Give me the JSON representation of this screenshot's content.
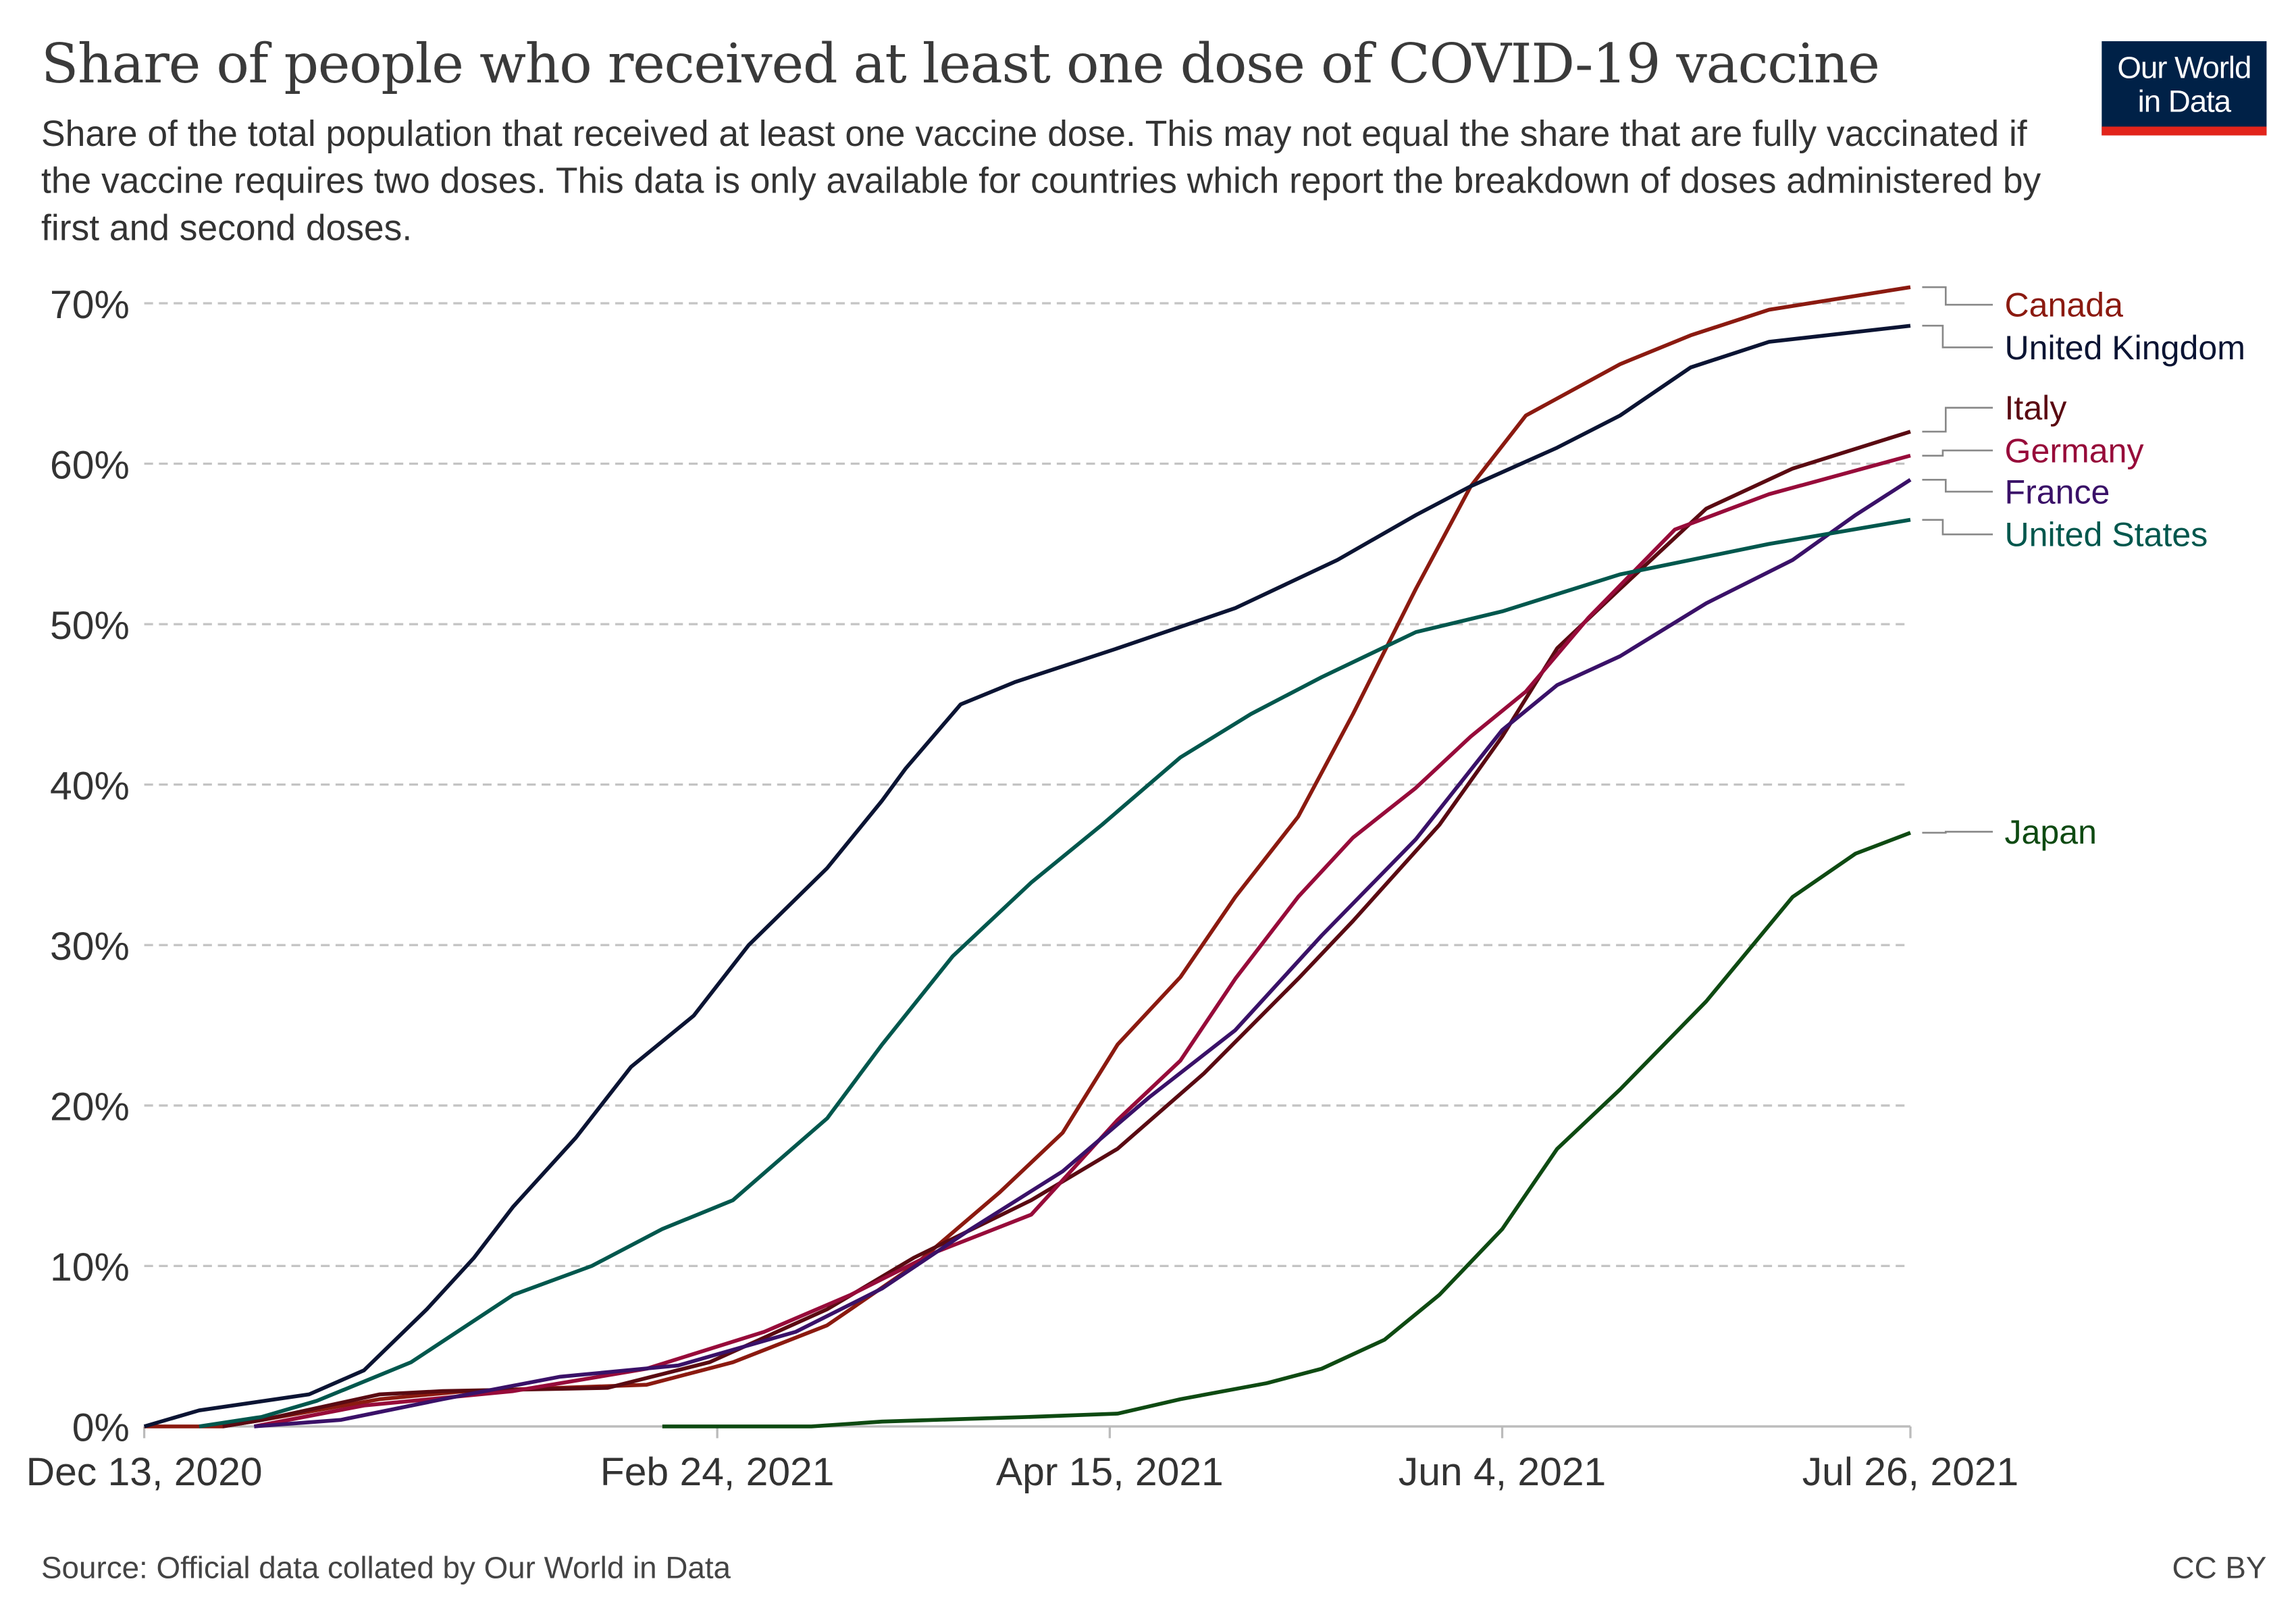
{
  "header": {
    "title": "Share of people who received at least one dose of COVID-19 vaccine",
    "subtitle": "Share of the total population that received at least one vaccine dose. This may not equal the share that are fully vaccinated if the vaccine requires two doses. This data is only available for countries which report the breakdown of doses administered by first and second doses.",
    "logo_line1": "Our World",
    "logo_line2": "in Data",
    "logo_colors": {
      "background": "#002147",
      "stripe": "#e2241b"
    }
  },
  "footer": {
    "source": "Source: Official data collated by Our World in Data",
    "license": "CC BY"
  },
  "chart_data": {
    "type": "line",
    "title": "Share of people who received at least one dose of COVID-19 vaccine",
    "xlabel": "",
    "ylabel": "",
    "x_type": "date",
    "xlim": [
      "2020-12-13",
      "2021-07-26"
    ],
    "x_ticks": [
      {
        "date": "2020-12-13",
        "label": "Dec 13, 2020"
      },
      {
        "date": "2021-02-24",
        "label": "Feb 24, 2021"
      },
      {
        "date": "2021-04-15",
        "label": "Apr 15, 2021"
      },
      {
        "date": "2021-06-04",
        "label": "Jun 4, 2021"
      },
      {
        "date": "2021-07-26",
        "label": "Jul 26, 2021"
      }
    ],
    "ylim": [
      0,
      70
    ],
    "y_ticks": [
      {
        "value": 0,
        "label": "0%"
      },
      {
        "value": 10,
        "label": "10%"
      },
      {
        "value": 20,
        "label": "20%"
      },
      {
        "value": 30,
        "label": "30%"
      },
      {
        "value": 40,
        "label": "40%"
      },
      {
        "value": 50,
        "label": "50%"
      },
      {
        "value": 60,
        "label": "60%"
      },
      {
        "value": 70,
        "label": "70%"
      }
    ],
    "grid": "horizontal dashed",
    "legend": "right, labels at line ends",
    "series": [
      {
        "name": "Canada",
        "color": "#8b1a10",
        "points": [
          [
            "2020-12-13",
            0
          ],
          [
            "2020-12-23",
            0
          ],
          [
            "2020-12-28",
            0.4
          ],
          [
            "2021-01-12",
            1.7
          ],
          [
            "2021-01-23",
            2.2
          ],
          [
            "2021-02-15",
            2.6
          ],
          [
            "2021-02-26",
            4
          ],
          [
            "2021-03-10",
            6.3
          ],
          [
            "2021-03-21",
            10
          ],
          [
            "2021-04-01",
            14.6
          ],
          [
            "2021-04-09",
            18.3
          ],
          [
            "2021-04-16",
            23.8
          ],
          [
            "2021-04-24",
            28
          ],
          [
            "2021-05-01",
            33
          ],
          [
            "2021-05-09",
            38
          ],
          [
            "2021-05-16",
            44.4
          ],
          [
            "2021-05-24",
            52.2
          ],
          [
            "2021-05-31",
            58.6
          ],
          [
            "2021-06-07",
            63
          ],
          [
            "2021-06-19",
            66.2
          ],
          [
            "2021-06-28",
            68
          ],
          [
            "2021-07-08",
            69.6
          ],
          [
            "2021-07-26",
            71
          ]
        ]
      },
      {
        "name": "United Kingdom",
        "color": "#0b1433",
        "points": [
          [
            "2020-12-13",
            0
          ],
          [
            "2020-12-20",
            1
          ],
          [
            "2021-01-03",
            2
          ],
          [
            "2021-01-10",
            3.5
          ],
          [
            "2021-01-18",
            7.3
          ],
          [
            "2021-01-24",
            10.5
          ],
          [
            "2021-01-29",
            13.7
          ],
          [
            "2021-02-06",
            18
          ],
          [
            "2021-02-13",
            22.4
          ],
          [
            "2021-02-21",
            25.6
          ],
          [
            "2021-02-28",
            30
          ],
          [
            "2021-03-10",
            34.8
          ],
          [
            "2021-03-17",
            39
          ],
          [
            "2021-03-20",
            41
          ],
          [
            "2021-03-27",
            45
          ],
          [
            "2021-04-03",
            46.4
          ],
          [
            "2021-04-16",
            48.5
          ],
          [
            "2021-05-01",
            51
          ],
          [
            "2021-05-14",
            54
          ],
          [
            "2021-05-24",
            56.8
          ],
          [
            "2021-05-31",
            58.6
          ],
          [
            "2021-06-11",
            61
          ],
          [
            "2021-06-19",
            63
          ],
          [
            "2021-06-28",
            66
          ],
          [
            "2021-07-08",
            67.6
          ],
          [
            "2021-07-26",
            68.6
          ]
        ]
      },
      {
        "name": "Italy",
        "color": "#5a0a12",
        "points": [
          [
            "2020-12-23",
            0
          ],
          [
            "2020-12-28",
            0.4
          ],
          [
            "2021-01-12",
            2
          ],
          [
            "2021-01-20",
            2.2
          ],
          [
            "2021-02-10",
            2.4
          ],
          [
            "2021-02-23",
            4
          ],
          [
            "2021-03-10",
            7.3
          ],
          [
            "2021-03-21",
            10.5
          ],
          [
            "2021-04-05",
            14.1
          ],
          [
            "2021-04-16",
            17.3
          ],
          [
            "2021-04-27",
            22
          ],
          [
            "2021-05-09",
            27.9
          ],
          [
            "2021-05-16",
            31.5
          ],
          [
            "2021-05-27",
            37.5
          ],
          [
            "2021-06-04",
            43
          ],
          [
            "2021-06-11",
            48.5
          ],
          [
            "2021-06-19",
            52.2
          ],
          [
            "2021-06-30",
            57.2
          ],
          [
            "2021-07-11",
            59.7
          ],
          [
            "2021-07-26",
            62
          ]
        ]
      },
      {
        "name": "Germany",
        "color": "#970b3a",
        "points": [
          [
            "2020-12-27",
            0
          ],
          [
            "2021-01-10",
            1.3
          ],
          [
            "2021-01-29",
            2.2
          ],
          [
            "2021-02-15",
            3.6
          ],
          [
            "2021-03-02",
            5.9
          ],
          [
            "2021-03-13",
            8.2
          ],
          [
            "2021-03-24",
            10.9
          ],
          [
            "2021-04-05",
            13.2
          ],
          [
            "2021-04-16",
            19.1
          ],
          [
            "2021-04-24",
            22.8
          ],
          [
            "2021-05-01",
            27.9
          ],
          [
            "2021-05-09",
            33
          ],
          [
            "2021-05-16",
            36.7
          ],
          [
            "2021-05-24",
            39.8
          ],
          [
            "2021-05-31",
            43
          ],
          [
            "2021-06-07",
            45.8
          ],
          [
            "2021-06-15",
            50.4
          ],
          [
            "2021-06-26",
            55.9
          ],
          [
            "2021-07-08",
            58.1
          ],
          [
            "2021-07-26",
            60.5
          ]
        ]
      },
      {
        "name": "France",
        "color": "#3a1168",
        "points": [
          [
            "2020-12-27",
            0
          ],
          [
            "2021-01-07",
            0.4
          ],
          [
            "2021-01-20",
            1.7
          ],
          [
            "2021-02-04",
            3.1
          ],
          [
            "2021-02-19",
            3.8
          ],
          [
            "2021-03-06",
            5.9
          ],
          [
            "2021-03-17",
            8.6
          ],
          [
            "2021-03-28",
            12.2
          ],
          [
            "2021-04-09",
            15.9
          ],
          [
            "2021-04-20",
            20.5
          ],
          [
            "2021-05-01",
            24.7
          ],
          [
            "2021-05-12",
            30.6
          ],
          [
            "2021-05-24",
            36.6
          ],
          [
            "2021-06-04",
            43.4
          ],
          [
            "2021-06-11",
            46.2
          ],
          [
            "2021-06-19",
            48
          ],
          [
            "2021-06-30",
            51.3
          ],
          [
            "2021-07-11",
            54
          ],
          [
            "2021-07-19",
            56.8
          ],
          [
            "2021-07-26",
            59
          ]
        ]
      },
      {
        "name": "United States",
        "color": "#00574d",
        "points": [
          [
            "2020-12-20",
            0
          ],
          [
            "2020-12-28",
            0.6
          ],
          [
            "2021-01-04",
            1.6
          ],
          [
            "2021-01-16",
            4
          ],
          [
            "2021-01-29",
            8.2
          ],
          [
            "2021-02-08",
            10
          ],
          [
            "2021-02-17",
            12.3
          ],
          [
            "2021-02-26",
            14.1
          ],
          [
            "2021-03-10",
            19.2
          ],
          [
            "2021-03-17",
            23.8
          ],
          [
            "2021-03-26",
            29.3
          ],
          [
            "2021-04-05",
            33.9
          ],
          [
            "2021-04-14",
            37.5
          ],
          [
            "2021-04-24",
            41.7
          ],
          [
            "2021-05-03",
            44.4
          ],
          [
            "2021-05-12",
            46.7
          ],
          [
            "2021-05-24",
            49.5
          ],
          [
            "2021-06-04",
            50.8
          ],
          [
            "2021-06-19",
            53.1
          ],
          [
            "2021-07-08",
            55
          ],
          [
            "2021-07-26",
            56.5
          ]
        ]
      },
      {
        "name": "Japan",
        "color": "#0e4a12",
        "points": [
          [
            "2021-02-17",
            0
          ],
          [
            "2021-03-08",
            0
          ],
          [
            "2021-03-17",
            0.3
          ],
          [
            "2021-04-05",
            0.6
          ],
          [
            "2021-04-16",
            0.8
          ],
          [
            "2021-04-24",
            1.7
          ],
          [
            "2021-05-05",
            2.7
          ],
          [
            "2021-05-12",
            3.6
          ],
          [
            "2021-05-20",
            5.4
          ],
          [
            "2021-05-27",
            8.2
          ],
          [
            "2021-06-04",
            12.3
          ],
          [
            "2021-06-11",
            17.3
          ],
          [
            "2021-06-19",
            21
          ],
          [
            "2021-06-30",
            26.5
          ],
          [
            "2021-07-11",
            33
          ],
          [
            "2021-07-19",
            35.7
          ],
          [
            "2021-07-26",
            37
          ]
        ]
      }
    ]
  }
}
